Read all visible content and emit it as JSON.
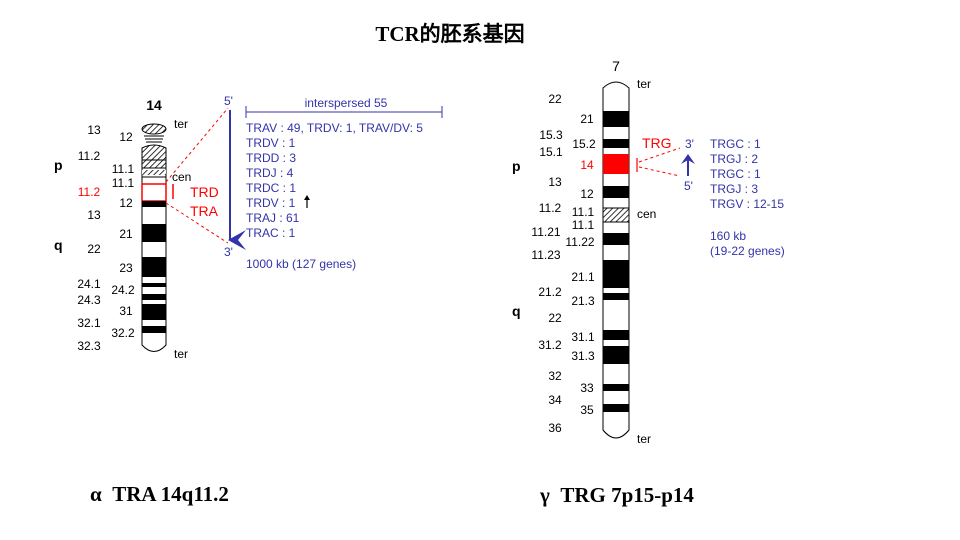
{
  "title": "TCR的胚系基因",
  "chr14": {
    "number": "14",
    "arm_p": "p",
    "arm_q": "q",
    "left_bands": [
      "13",
      "11.2",
      "11.2",
      "13",
      "22",
      "24.1",
      "24.3",
      "32.1",
      "32.3"
    ],
    "right_bands": [
      "12",
      "11.1",
      "11.1",
      "12",
      "21",
      "23",
      "24.2",
      "31",
      "32.2"
    ],
    "ter_top": "ter",
    "ter_bottom": "ter",
    "cen": "cen",
    "highlight_labels": [
      "TRD",
      "TRA"
    ],
    "five_prime": "5'",
    "three_prime": "3'",
    "interspersed": "interspersed 55",
    "gene_lines": [
      "TRAV : 49, TRDV: 1, TRAV/DV: 5",
      "TRDV : 1",
      "TRDD : 3",
      "TRDJ : 4",
      "TRDC : 1",
      "TRDV : 1",
      "TRAJ : 61",
      "TRAC : 1"
    ],
    "size_note": "1000 kb (127 genes)",
    "caption_greek": "α",
    "caption_text": "TRA 14q11.2"
  },
  "chr7": {
    "number": "7",
    "arm_p": "p",
    "arm_q": "q",
    "left_bands": [
      "22",
      "15.3",
      "15.1",
      "13",
      "11.2",
      "11.21",
      "11.23",
      "21.2",
      "22",
      "31.2",
      "32",
      "34",
      "36"
    ],
    "right_bands": [
      "21",
      "15.2",
      "14",
      "12",
      "11.1",
      "11.1",
      "11.22",
      "21.1",
      "21.3",
      "31.1",
      "31.3",
      "33",
      "35"
    ],
    "ter_top": "ter",
    "ter_bottom": "ter",
    "cen": "cen",
    "gene_label": "TRG",
    "three_prime": "3'",
    "five_prime": "5'",
    "gene_lines": [
      "TRGC : 1",
      "TRGJ  : 2",
      "TRGC : 1",
      "TRGJ  : 3",
      "TRGV : 12-15"
    ],
    "size_note_1": "160 kb",
    "size_note_2": "(19-22 genes)",
    "caption_greek": "γ",
    "caption_text": "TRG 7p15-p14"
  },
  "colors": {
    "highlight": "#ff0000",
    "annotation": "#3333aa",
    "band_dark": "#000000"
  }
}
